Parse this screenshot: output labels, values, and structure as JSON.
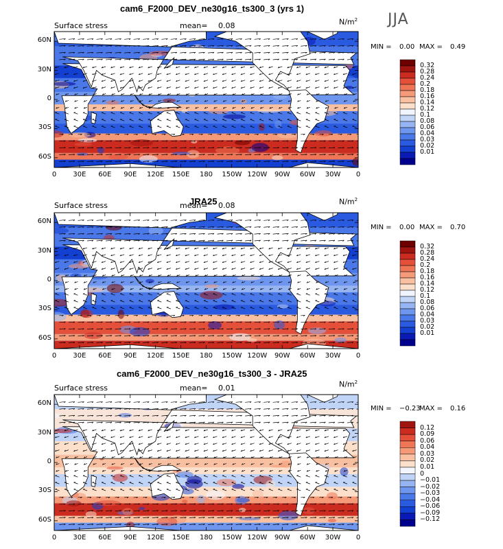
{
  "season": "JJA",
  "units": "N/m",
  "units_exp": "2",
  "lat_ticks": [
    "60N",
    "30N",
    "0",
    "30S",
    "60S"
  ],
  "lat_values": [
    60,
    30,
    0,
    -30,
    -60
  ],
  "lon_ticks": [
    "0",
    "30E",
    "60E",
    "90E",
    "120E",
    "150E",
    "180",
    "150W",
    "120W",
    "90W",
    "60W",
    "30W",
    "0"
  ],
  "colors": {
    "main": [
      "#00008f",
      "#0a1ab4",
      "#1440d2",
      "#2a5ae0",
      "#4a78e8",
      "#6e96ee",
      "#96b4f2",
      "#c0d4f8",
      "#f0f4ff",
      "#fce0cc",
      "#f8c0a0",
      "#f49a78",
      "#ee7556",
      "#e4503a",
      "#cc2c20",
      "#a01410",
      "#6e0000"
    ],
    "diff": [
      "#00008f",
      "#0a1ab4",
      "#1440d2",
      "#2a5ae0",
      "#4a78e8",
      "#6e96ee",
      "#96b4f2",
      "#c0d4f8",
      "#f4f6ff",
      "#fce0cc",
      "#f8c0a0",
      "#f49a78",
      "#ee7556",
      "#e4503a",
      "#cc2c20",
      "#a01410"
    ]
  },
  "panels": [
    {
      "title": "cam6_F2000_DEV_ne30g16_ts300_3 (yrs 1)",
      "left_label": "Surface stress",
      "mean_label": "mean=",
      "mean_value": "0.08",
      "min_label": "MIN =",
      "min_value": "0.00",
      "max_label": "MAX =",
      "max_value": "0.49",
      "levels": [
        "0.01",
        "0.02",
        "0.03",
        "0.04",
        "0.06",
        "0.08",
        "0.1",
        "0.12",
        "0.14",
        "0.16",
        "0.18",
        "0.2",
        "0.24",
        "0.28",
        "0.32"
      ]
    },
    {
      "title": "JRA25",
      "left_label": "Surface stress",
      "mean_label": "mean=",
      "mean_value": "0.08",
      "min_label": "MIN =",
      "min_value": "0.00",
      "max_label": "MAX =",
      "max_value": "0.70",
      "levels": [
        "0.01",
        "0.02",
        "0.03",
        "0.04",
        "0.06",
        "0.08",
        "0.1",
        "0.12",
        "0.14",
        "0.16",
        "0.18",
        "0.2",
        "0.24",
        "0.28",
        "0.32"
      ]
    },
    {
      "title": "cam6_F2000_DEV_ne30g16_ts300_3 - JRA25",
      "left_label": "Surface stress",
      "mean_label": "mean=",
      "mean_value": "0.01",
      "min_label": "MIN =",
      "min_value": "−0.23",
      "max_label": "MAX =",
      "max_value": "0.16",
      "levels": [
        "−0.12",
        "−0.09",
        "−0.06",
        "−0.04",
        "−0.03",
        "−0.02",
        "−0.01",
        "0",
        "0.01",
        "0.02",
        "0.03",
        "0.04",
        "0.06",
        "0.09",
        "0.12"
      ]
    }
  ]
}
